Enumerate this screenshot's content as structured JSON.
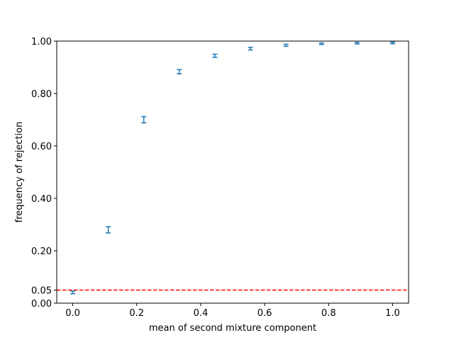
{
  "chart_data": {
    "type": "scatter",
    "title": "",
    "xlabel": "mean of second mixture component",
    "ylabel": "frequency of rejection",
    "xlim": [
      -0.05,
      1.05
    ],
    "ylim": [
      0.0,
      1.0
    ],
    "x_ticks": [
      0.0,
      0.2,
      0.4,
      0.6,
      0.8,
      1.0
    ],
    "x_tick_labels": [
      "0.0",
      "0.2",
      "0.4",
      "0.6",
      "0.8",
      "1.0"
    ],
    "y_ticks": [
      0.0,
      0.05,
      0.2,
      0.4,
      0.6,
      0.8,
      1.0
    ],
    "y_tick_labels": [
      "0.00",
      "0.05",
      "0.20",
      "0.40",
      "0.60",
      "0.80",
      "1.00"
    ],
    "grid": false,
    "legend": "none",
    "series": [
      {
        "color": "#1f77b4",
        "marker": "errorbar",
        "points": [
          {
            "x": 0.0,
            "y": 0.041,
            "lo": 0.036,
            "hi": 0.046
          },
          {
            "x": 0.1111,
            "y": 0.28,
            "lo": 0.268,
            "hi": 0.292
          },
          {
            "x": 0.2222,
            "y": 0.7,
            "lo": 0.688,
            "hi": 0.712
          },
          {
            "x": 0.3333,
            "y": 0.883,
            "lo": 0.875,
            "hi": 0.891
          },
          {
            "x": 0.4444,
            "y": 0.944,
            "lo": 0.938,
            "hi": 0.95
          },
          {
            "x": 0.5556,
            "y": 0.971,
            "lo": 0.966,
            "hi": 0.976
          },
          {
            "x": 0.6667,
            "y": 0.984,
            "lo": 0.98,
            "hi": 0.988
          },
          {
            "x": 0.7778,
            "y": 0.99,
            "lo": 0.987,
            "hi": 0.993
          },
          {
            "x": 0.8889,
            "y": 0.992,
            "lo": 0.989,
            "hi": 0.995
          },
          {
            "x": 1.0,
            "y": 0.993,
            "lo": 0.99,
            "hi": 0.996
          }
        ]
      }
    ],
    "reference_line": {
      "y": 0.05,
      "color": "#ff0000",
      "style": "dashed"
    }
  }
}
